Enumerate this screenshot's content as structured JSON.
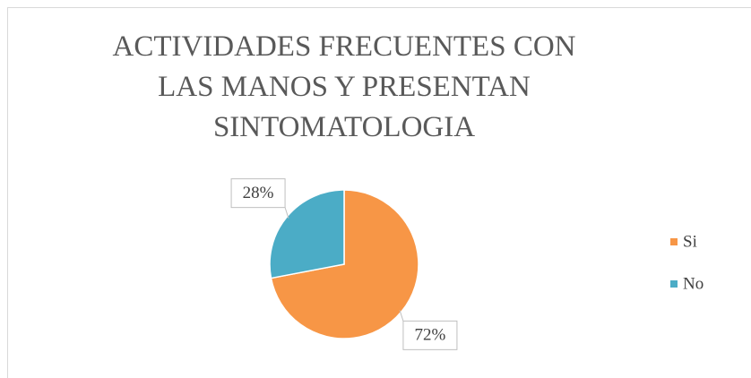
{
  "chart_data": {
    "type": "pie",
    "title": "ACTIVIDADES FRECUENTES CON LAS MANOS Y PRESENTAN SINTOMATOLOGIA",
    "categories": [
      "Si",
      "No"
    ],
    "values": [
      72,
      28
    ],
    "value_labels": [
      "72%",
      "28%"
    ],
    "colors": [
      "#f79646",
      "#4bacc6"
    ],
    "legend": "right"
  }
}
